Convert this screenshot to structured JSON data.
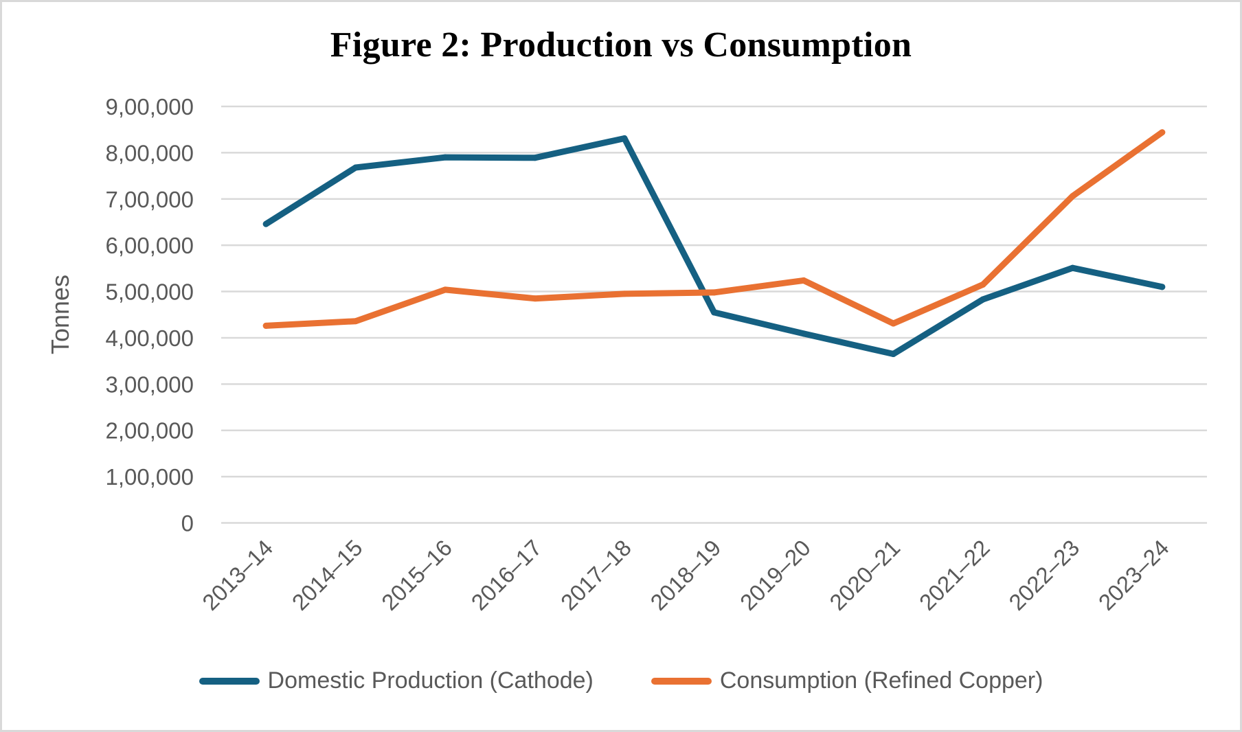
{
  "chart_data": {
    "type": "line",
    "title": "Figure 2: Production vs Consumption",
    "xlabel": "",
    "ylabel": "Tonnes",
    "ylim": [
      0,
      900000
    ],
    "yticks": [
      0,
      100000,
      200000,
      300000,
      400000,
      500000,
      600000,
      700000,
      800000,
      900000
    ],
    "ytick_labels": [
      "0",
      "1,00,000",
      "2,00,000",
      "3,00,000",
      "4,00,000",
      "5,00,000",
      "6,00,000",
      "7,00,000",
      "8,00,000",
      "9,00,000"
    ],
    "grid": true,
    "legend_position": "bottom",
    "categories": [
      "2013–14",
      "2014–15",
      "2015–16",
      "2016–17",
      "2017–18",
      "2018–19",
      "2019–20",
      "2020–21",
      "2021–22",
      "2022–23",
      "2023–24"
    ],
    "series": [
      {
        "name": "Domestic Production (Cathode)",
        "color": "#156082",
        "values": [
          646000,
          768000,
          790000,
          789000,
          831000,
          455000,
          409000,
          365000,
          483000,
          551000,
          510000
        ]
      },
      {
        "name": "Consumption (Refined Copper)",
        "color": "#E97132",
        "values": [
          426000,
          436000,
          504000,
          485000,
          495000,
          498000,
          524000,
          431000,
          515000,
          706000,
          844000
        ]
      }
    ]
  }
}
